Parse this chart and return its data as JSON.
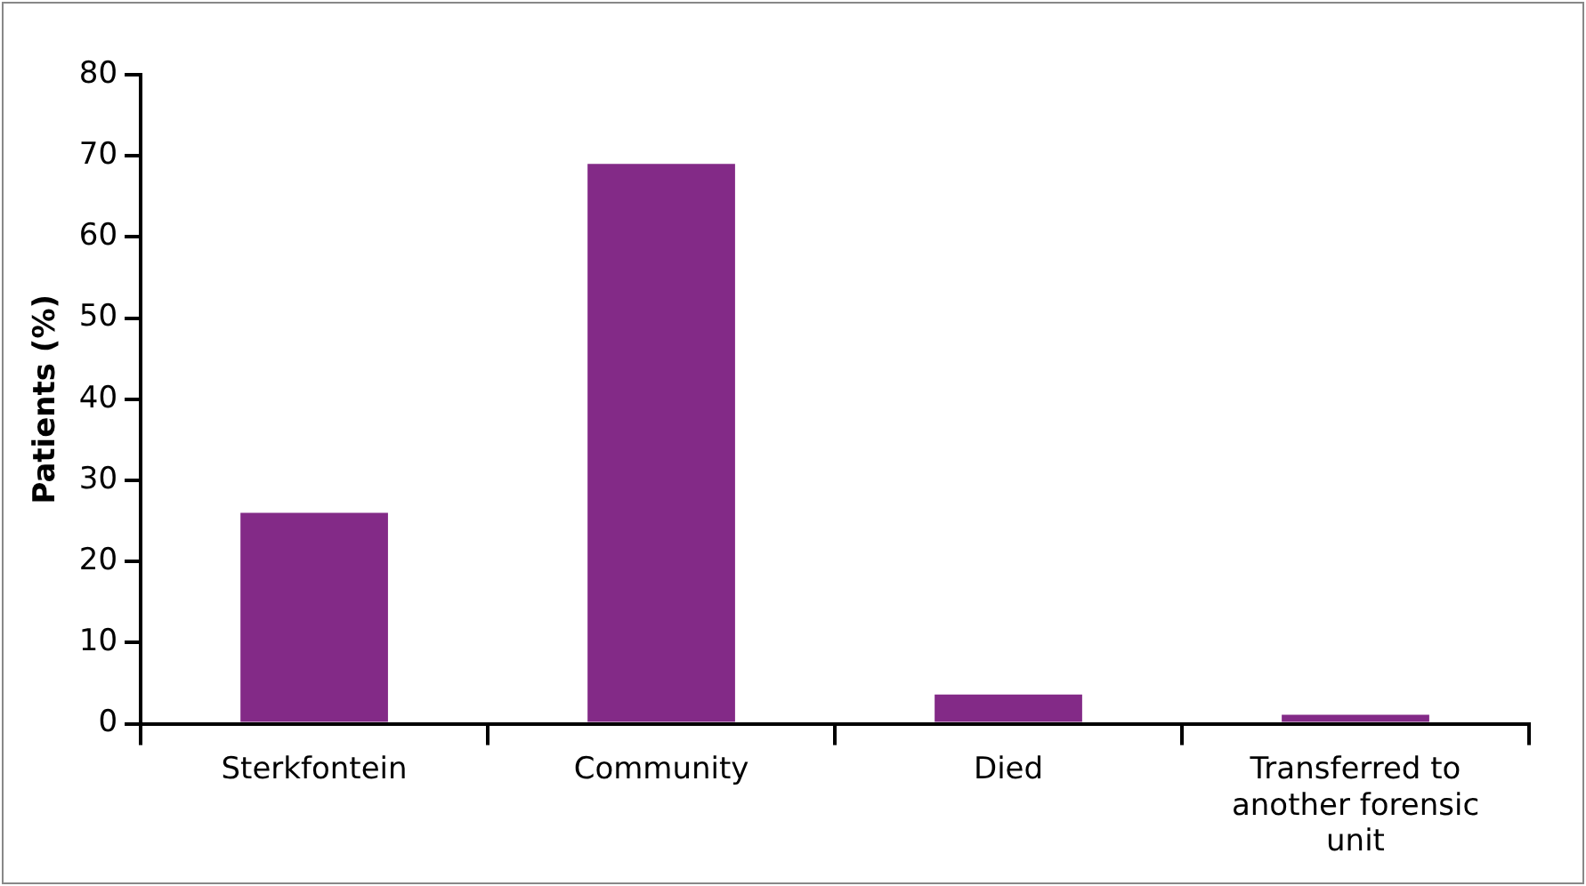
{
  "chart_data": {
    "type": "bar",
    "ylabel": "Patients (%)",
    "categories": [
      "Sterkfontein",
      "Community",
      "Died",
      "Transferred to another forensic unit"
    ],
    "values": [
      26,
      69,
      3.6,
      1.1
    ],
    "color": "#832a87",
    "ylim": [
      0,
      80
    ],
    "yticks": [
      0,
      10,
      20,
      30,
      40,
      50,
      60,
      70,
      80
    ],
    "grid": false,
    "legend": false
  }
}
